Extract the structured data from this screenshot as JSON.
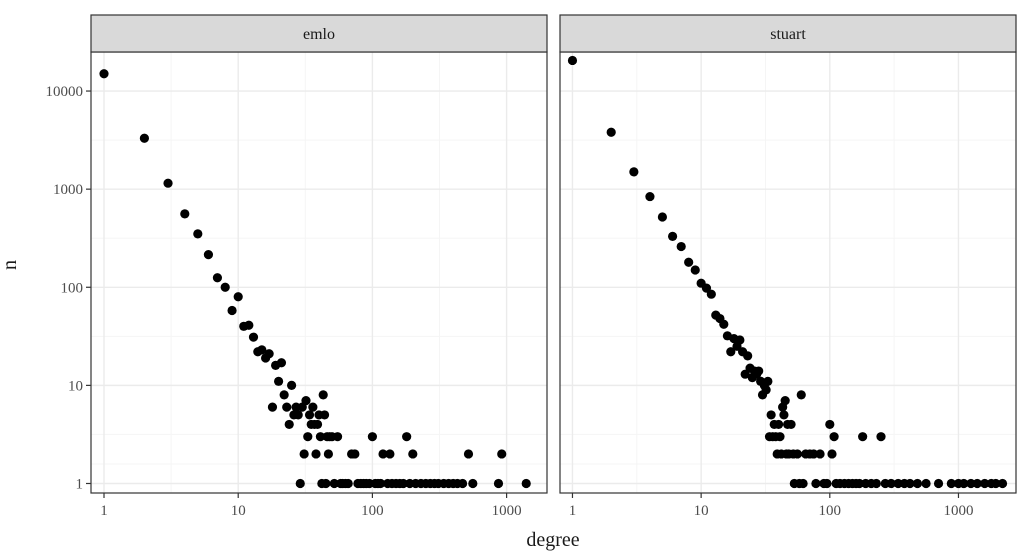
{
  "chart_data": {
    "type": "scatter",
    "xlabel": "degree",
    "ylabel": "n",
    "x_scale": "log10",
    "y_scale": "log10",
    "xlim": [
      0.8,
      2000
    ],
    "ylim": [
      0.8,
      25000
    ],
    "x_ticks": [
      1,
      10,
      100,
      1000
    ],
    "y_ticks": [
      1,
      10,
      100,
      1000,
      10000
    ],
    "x_tick_labels": [
      "1",
      "10",
      "100",
      "1000"
    ],
    "y_tick_labels": [
      "1",
      "10",
      "100",
      "1000",
      "10000"
    ],
    "grid": true,
    "colors": {
      "point": "#000000",
      "strip_fill": "#d9d9d9",
      "grid_major": "#ebebeb",
      "grid_minor": "#f5f5f5",
      "border": "#333333"
    },
    "panels": [
      {
        "label": "emlo",
        "xlim": [
          0.8,
          2000
        ],
        "points": [
          [
            1,
            15000
          ],
          [
            2,
            3300
          ],
          [
            3,
            1150
          ],
          [
            4,
            560
          ],
          [
            5,
            350
          ],
          [
            6,
            215
          ],
          [
            7,
            125
          ],
          [
            8,
            100
          ],
          [
            9,
            58
          ],
          [
            10,
            80
          ],
          [
            11,
            40
          ],
          [
            12,
            41
          ],
          [
            13,
            31
          ],
          [
            14,
            22
          ],
          [
            15,
            23
          ],
          [
            16,
            19
          ],
          [
            17,
            21
          ],
          [
            18,
            6
          ],
          [
            19,
            16
          ],
          [
            20,
            11
          ],
          [
            21,
            17
          ],
          [
            22,
            8
          ],
          [
            23,
            6
          ],
          [
            24,
            4
          ],
          [
            25,
            10
          ],
          [
            26,
            5
          ],
          [
            27,
            6
          ],
          [
            28,
            5
          ],
          [
            29,
            1
          ],
          [
            30,
            6
          ],
          [
            31,
            2
          ],
          [
            32,
            7
          ],
          [
            33,
            3
          ],
          [
            34,
            5
          ],
          [
            35,
            4
          ],
          [
            36,
            6
          ],
          [
            37,
            4
          ],
          [
            38,
            2
          ],
          [
            39,
            4
          ],
          [
            40,
            5
          ],
          [
            41,
            3
          ],
          [
            42,
            1
          ],
          [
            43,
            8
          ],
          [
            44,
            5
          ],
          [
            45,
            1
          ],
          [
            46,
            3
          ],
          [
            47,
            2
          ],
          [
            48,
            3
          ],
          [
            50,
            3
          ],
          [
            52,
            1
          ],
          [
            55,
            3
          ],
          [
            58,
            1
          ],
          [
            60,
            1
          ],
          [
            63,
            1
          ],
          [
            66,
            1
          ],
          [
            70,
            2
          ],
          [
            74,
            2
          ],
          [
            78,
            1
          ],
          [
            82,
            1
          ],
          [
            86,
            1
          ],
          [
            90,
            1
          ],
          [
            95,
            1
          ],
          [
            100,
            3
          ],
          [
            105,
            1
          ],
          [
            110,
            1
          ],
          [
            115,
            1
          ],
          [
            120,
            2
          ],
          [
            130,
            1
          ],
          [
            135,
            2
          ],
          [
            140,
            1
          ],
          [
            150,
            1
          ],
          [
            160,
            1
          ],
          [
            170,
            1
          ],
          [
            180,
            3
          ],
          [
            190,
            1
          ],
          [
            200,
            2
          ],
          [
            210,
            1
          ],
          [
            230,
            1
          ],
          [
            250,
            1
          ],
          [
            270,
            1
          ],
          [
            290,
            1
          ],
          [
            310,
            1
          ],
          [
            340,
            1
          ],
          [
            370,
            1
          ],
          [
            400,
            1
          ],
          [
            430,
            1
          ],
          [
            470,
            1
          ],
          [
            520,
            2
          ],
          [
            560,
            1
          ],
          [
            870,
            1
          ],
          [
            920,
            2
          ],
          [
            1400,
            1
          ]
        ]
      },
      {
        "label": "stuart",
        "xlim": [
          0.8,
          2800
        ],
        "points": [
          [
            1,
            20500
          ],
          [
            2,
            3800
          ],
          [
            3,
            1500
          ],
          [
            4,
            840
          ],
          [
            5,
            520
          ],
          [
            6,
            330
          ],
          [
            7,
            260
          ],
          [
            8,
            180
          ],
          [
            9,
            150
          ],
          [
            10,
            110
          ],
          [
            11,
            98
          ],
          [
            12,
            85
          ],
          [
            13,
            52
          ],
          [
            14,
            48
          ],
          [
            15,
            42
          ],
          [
            16,
            32
          ],
          [
            17,
            22
          ],
          [
            18,
            30
          ],
          [
            19,
            25
          ],
          [
            20,
            29
          ],
          [
            21,
            22
          ],
          [
            22,
            13
          ],
          [
            23,
            20
          ],
          [
            24,
            15
          ],
          [
            25,
            12
          ],
          [
            26,
            14
          ],
          [
            27,
            13
          ],
          [
            28,
            14
          ],
          [
            29,
            11
          ],
          [
            30,
            8
          ],
          [
            31,
            10
          ],
          [
            32,
            9
          ],
          [
            33,
            11
          ],
          [
            34,
            3
          ],
          [
            35,
            5
          ],
          [
            36,
            3
          ],
          [
            37,
            4
          ],
          [
            38,
            3
          ],
          [
            39,
            2
          ],
          [
            40,
            4
          ],
          [
            41,
            3
          ],
          [
            42,
            2
          ],
          [
            43,
            6
          ],
          [
            44,
            5
          ],
          [
            45,
            7
          ],
          [
            46,
            2
          ],
          [
            47,
            4
          ],
          [
            48,
            2
          ],
          [
            50,
            4
          ],
          [
            52,
            2
          ],
          [
            53,
            1
          ],
          [
            56,
            2
          ],
          [
            58,
            1
          ],
          [
            60,
            8
          ],
          [
            62,
            1
          ],
          [
            65,
            2
          ],
          [
            70,
            2
          ],
          [
            75,
            2
          ],
          [
            78,
            1
          ],
          [
            84,
            2
          ],
          [
            90,
            1
          ],
          [
            95,
            1
          ],
          [
            100,
            4
          ],
          [
            104,
            2
          ],
          [
            108,
            3
          ],
          [
            112,
            1
          ],
          [
            120,
            1
          ],
          [
            130,
            1
          ],
          [
            140,
            1
          ],
          [
            150,
            1
          ],
          [
            160,
            1
          ],
          [
            170,
            1
          ],
          [
            180,
            3
          ],
          [
            190,
            1
          ],
          [
            210,
            1
          ],
          [
            230,
            1
          ],
          [
            250,
            3
          ],
          [
            270,
            1
          ],
          [
            300,
            1
          ],
          [
            340,
            1
          ],
          [
            380,
            1
          ],
          [
            420,
            1
          ],
          [
            480,
            1
          ],
          [
            560,
            1
          ],
          [
            700,
            1
          ],
          [
            880,
            1
          ],
          [
            1000,
            1
          ],
          [
            1100,
            1
          ],
          [
            1250,
            1
          ],
          [
            1400,
            1
          ],
          [
            1600,
            1
          ],
          [
            1800,
            1
          ],
          [
            1950,
            1
          ],
          [
            2200,
            1
          ]
        ]
      }
    ]
  }
}
